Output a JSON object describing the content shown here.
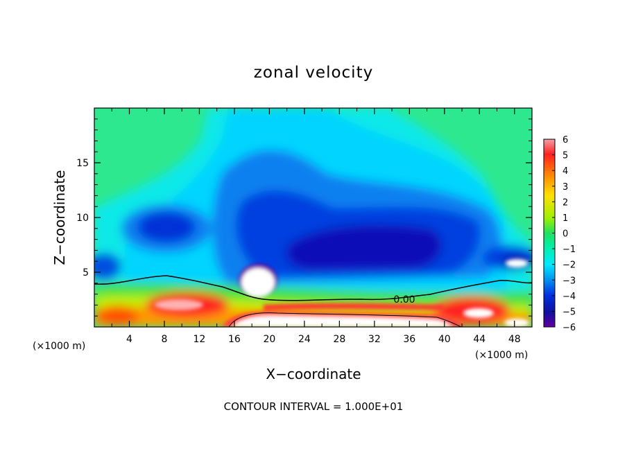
{
  "chart_data": {
    "type": "heatmap",
    "title": "zonal velocity",
    "xlabel": "X−coordinate",
    "ylabel": "Z−coordinate",
    "x_unit_left": "(×1000 m)",
    "x_unit_right": "(×1000 m)",
    "xlim": [
      0,
      50
    ],
    "ylim": [
      0,
      20
    ],
    "x_ticks": [
      4,
      8,
      12,
      16,
      20,
      24,
      28,
      32,
      36,
      40,
      44,
      48
    ],
    "y_ticks": [
      5,
      10,
      15
    ],
    "colorbar": {
      "min": -6,
      "max": 6,
      "tick_values": [
        6,
        5,
        4,
        3,
        2,
        1,
        0,
        -1,
        -2,
        -3,
        -4,
        -5,
        -6
      ],
      "tick_labels": [
        "6",
        "5",
        "4",
        "3",
        "2",
        "1",
        "0",
        "−1",
        "−2",
        "−3",
        "−4",
        "−5",
        "−6"
      ]
    },
    "contour_label": "0.00",
    "footer": "CONTOUR INTERVAL = 1.000E+01"
  }
}
